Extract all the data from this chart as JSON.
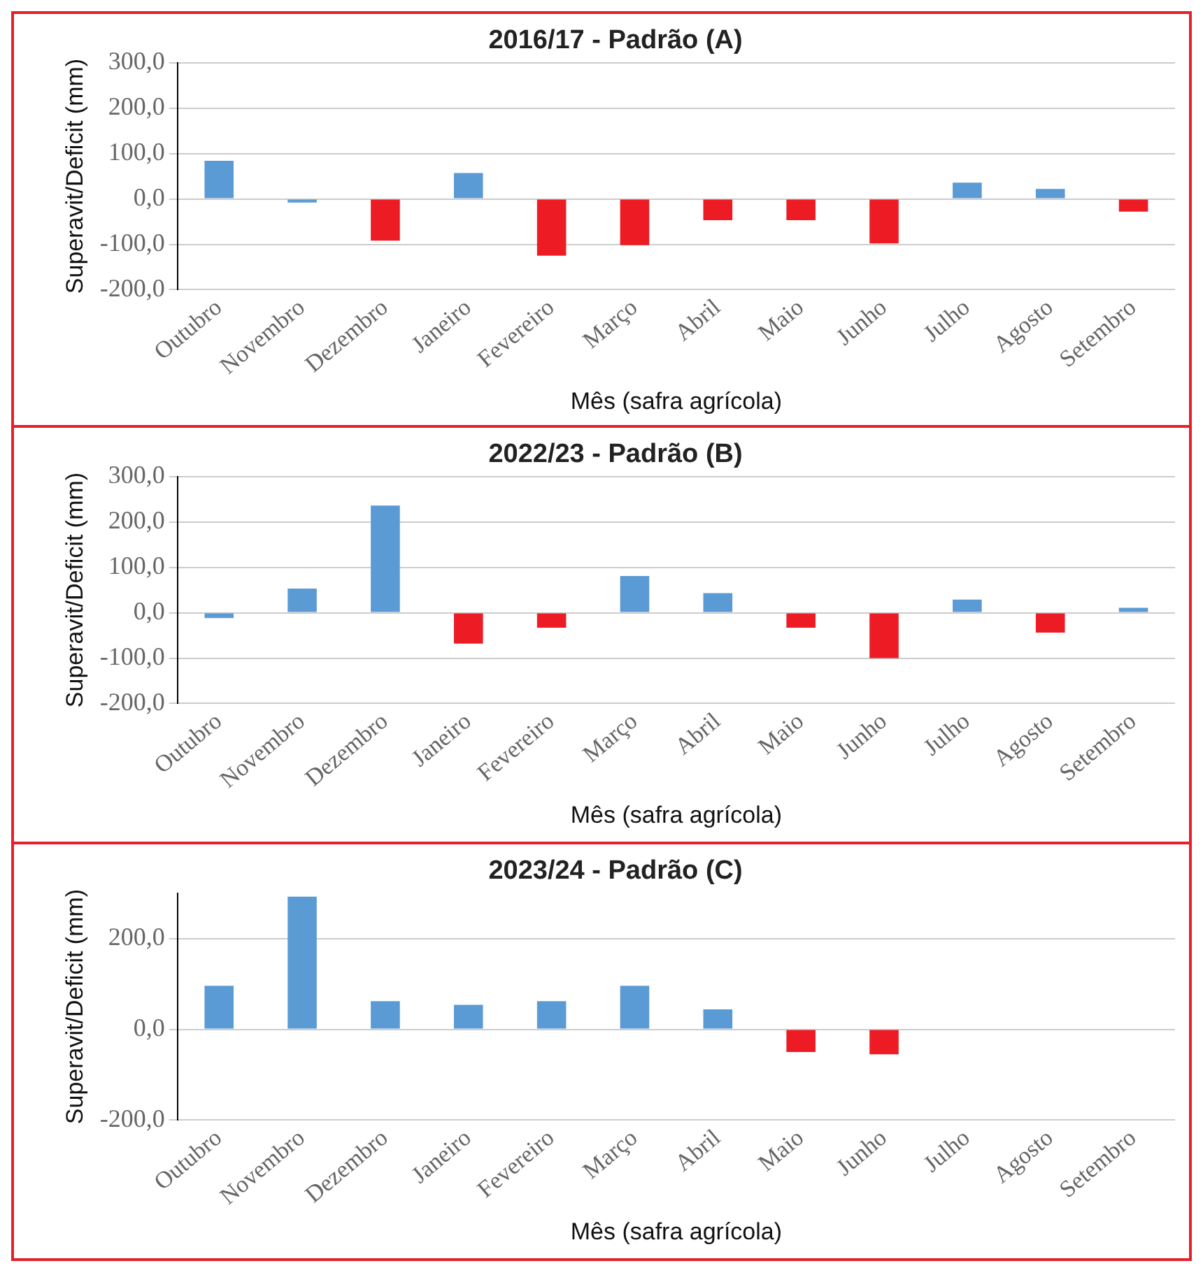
{
  "chart_data": [
    {
      "type": "bar",
      "title": "2016/17 - Padrão (A)",
      "xlabel": "Mês (safra agrícola)",
      "ylabel": "Superavit/Deficit (mm)",
      "categories": [
        "Outubro",
        "Novembro",
        "Dezembro",
        "Janeiro",
        "Fevereiro",
        "Março",
        "Abril",
        "Maio",
        "Junho",
        "Julho",
        "Agosto",
        "Setembro"
      ],
      "values": [
        84,
        -8,
        -92,
        57,
        -125,
        -102,
        -47,
        -47,
        -98,
        36,
        22,
        -28
      ],
      "colors": [
        "#5b9bd5",
        "#5b9bd5",
        "#ed1c24",
        "#5b9bd5",
        "#ed1c24",
        "#ed1c24",
        "#ed1c24",
        "#ed1c24",
        "#ed1c24",
        "#5b9bd5",
        "#5b9bd5",
        "#ed1c24"
      ],
      "ylim": [
        -200,
        300
      ],
      "yticks": [
        {
          "value": -200,
          "label": "-200,0"
        },
        {
          "value": -100,
          "label": "-100,0"
        },
        {
          "value": 0,
          "label": "0,0"
        },
        {
          "value": 100,
          "label": "100,0"
        },
        {
          "value": 200,
          "label": "200,0"
        },
        {
          "value": 300,
          "label": "300,0"
        }
      ],
      "grid": "y",
      "legend": false
    },
    {
      "type": "bar",
      "title": "2022/23 - Padrão (B)",
      "xlabel": "Mês (safra agrícola)",
      "ylabel": "Superavit/Deficit (mm)",
      "categories": [
        "Outubro",
        "Novembro",
        "Dezembro",
        "Janeiro",
        "Fevereiro",
        "Março",
        "Abril",
        "Maio",
        "Junho",
        "Julho",
        "Agosto",
        "Setembro"
      ],
      "values": [
        -12,
        53,
        236,
        -68,
        -33,
        81,
        43,
        -33,
        -100,
        29,
        -44,
        11
      ],
      "colors": [
        "#5b9bd5",
        "#5b9bd5",
        "#5b9bd5",
        "#ed1c24",
        "#ed1c24",
        "#5b9bd5",
        "#5b9bd5",
        "#ed1c24",
        "#ed1c24",
        "#5b9bd5",
        "#ed1c24",
        "#5b9bd5"
      ],
      "ylim": [
        -200,
        300
      ],
      "yticks": [
        {
          "value": -200,
          "label": "-200,0"
        },
        {
          "value": -100,
          "label": "-100,0"
        },
        {
          "value": 0,
          "label": "0,0"
        },
        {
          "value": 100,
          "label": "100,0"
        },
        {
          "value": 200,
          "label": "200,0"
        },
        {
          "value": 300,
          "label": "300,0"
        }
      ],
      "grid": "y",
      "legend": false
    },
    {
      "type": "bar",
      "title": "2023/24 - Padrão (C)",
      "xlabel": "Mês (safra agrícola)",
      "ylabel": "Superavit/Deficit (mm)",
      "categories": [
        "Outubro",
        "Novembro",
        "Dezembro",
        "Janeiro",
        "Fevereiro",
        "Março",
        "Abril",
        "Maio",
        "Junho",
        "Julho",
        "Agosto",
        "Setembro"
      ],
      "values": [
        96,
        292,
        62,
        54,
        62,
        96,
        44,
        -50,
        -55,
        null,
        null,
        null
      ],
      "colors": [
        "#5b9bd5",
        "#5b9bd5",
        "#5b9bd5",
        "#5b9bd5",
        "#5b9bd5",
        "#5b9bd5",
        "#5b9bd5",
        "#ed1c24",
        "#ed1c24",
        "#5b9bd5",
        "#5b9bd5",
        "#5b9bd5"
      ],
      "ylim": [
        -200,
        300
      ],
      "yticks": [
        {
          "value": -200,
          "label": "-200,0"
        },
        {
          "value": 0,
          "label": "0,0"
        },
        {
          "value": 200,
          "label": "200,0"
        }
      ],
      "grid": "y",
      "legend": false
    }
  ]
}
